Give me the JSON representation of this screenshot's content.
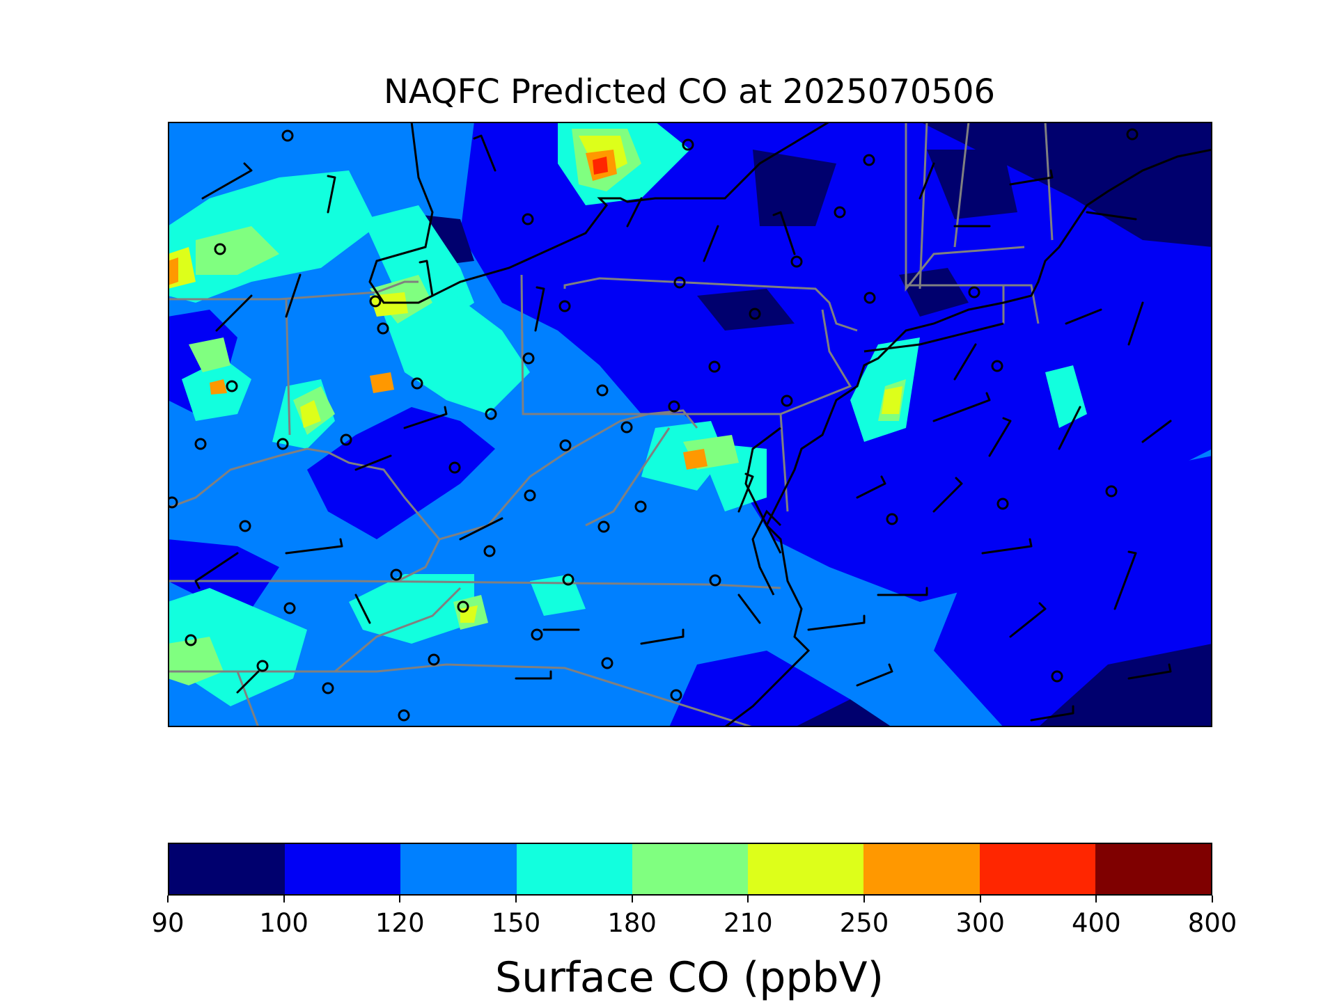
{
  "title": "NAQFC Predicted CO at 2025070506",
  "colorbar": {
    "label": "Surface CO (ppbV)",
    "ticks": [
      "90",
      "100",
      "120",
      "150",
      "180",
      "210",
      "250",
      "300",
      "400",
      "800"
    ],
    "colors": [
      "#00006e",
      "#0000f5",
      "#0080ff",
      "#12ffde",
      "#80ff80",
      "#ddff1a",
      "#ff9800",
      "#ff2600",
      "#7f0000"
    ]
  },
  "map_colors": {
    "border_country": "#000000",
    "border_state": "#808080",
    "barb": "#000000"
  }
}
